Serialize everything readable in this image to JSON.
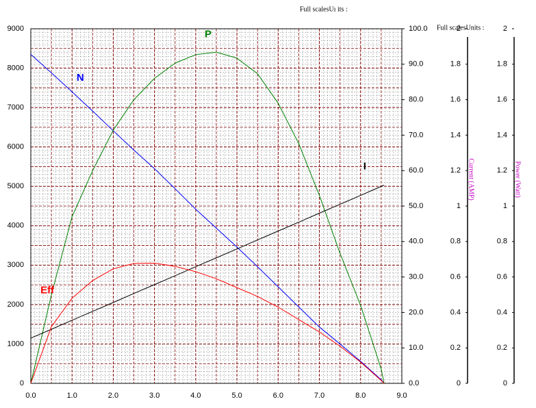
{
  "chart_data": {
    "type": "line",
    "header": "Full scalesUı its :",
    "header2": "Full scalesUnits :",
    "y3_label": "Current (AMP)",
    "y4_label": "Power (Watt)",
    "x": [
      0,
      0.5,
      1,
      1.5,
      2,
      2.5,
      3,
      3.5,
      4,
      4.5,
      5,
      5.5,
      6,
      6.5,
      7,
      7.5,
      8,
      8.5,
      8.57
    ],
    "xlim": [
      0,
      9
    ],
    "xticks": [
      {
        "value": 0,
        "label": "0.0"
      },
      {
        "value": 1,
        "label": "1.0"
      },
      {
        "value": 2,
        "label": "2.0"
      },
      {
        "value": 3,
        "label": "3.0"
      },
      {
        "value": 4,
        "label": "4.0"
      },
      {
        "value": 5,
        "label": "5.0"
      },
      {
        "value": 6,
        "label": "6.0"
      },
      {
        "value": 7,
        "label": "7.0"
      },
      {
        "value": 8,
        "label": "8.0"
      },
      {
        "value": 9,
        "label": "9.0"
      }
    ],
    "ylim": [
      0,
      9000
    ],
    "yticks": [
      0,
      1000,
      2000,
      3000,
      4000,
      5000,
      6000,
      7000,
      8000,
      9000
    ],
    "y2lim": [
      0,
      100
    ],
    "y2ticks": [
      {
        "value": 0,
        "label": "0.0"
      },
      {
        "value": 10,
        "label": "10.0"
      },
      {
        "value": 20,
        "label": "20.0"
      },
      {
        "value": 30,
        "label": "30.0"
      },
      {
        "value": 40,
        "label": "40.0"
      },
      {
        "value": 50,
        "label": "50.0"
      },
      {
        "value": 60,
        "label": "60.0"
      },
      {
        "value": 70,
        "label": "70.0"
      },
      {
        "value": 80,
        "label": "80.0"
      },
      {
        "value": 90,
        "label": "90.0"
      },
      {
        "value": 100,
        "label": "100.0"
      }
    ],
    "y3lim": [
      0,
      2
    ],
    "y3ticks": [
      0,
      0.2,
      0.4,
      0.6,
      0.8,
      1,
      1.2,
      1.4,
      1.6,
      1.8,
      2
    ],
    "y4lim": [
      0,
      2
    ],
    "y4ticks": [
      0,
      0.2,
      0.4,
      0.6,
      0.8,
      1,
      1.2,
      1.4,
      1.6,
      1.8,
      2
    ],
    "grid": true,
    "series": [
      {
        "name": "N",
        "color": "#0000ff",
        "axis": "y",
        "values": [
          8350,
          7880,
          7400,
          6910,
          6410,
          5920,
          5450,
          4940,
          4420,
          3940,
          3460,
          2960,
          2450,
          1940,
          1430,
          1000,
          560,
          90,
          0
        ]
      },
      {
        "name": "P",
        "color": "#008000",
        "axis": "y2",
        "values": [
          0,
          25,
          47,
          60,
          71.4,
          80,
          86,
          90.3,
          92.7,
          93.4,
          91.7,
          87.3,
          79,
          67.6,
          53,
          36.7,
          22,
          4,
          0
        ]
      },
      {
        "name": "I",
        "color": "#000000",
        "axis": "y3",
        "values": [
          0.255,
          0.305,
          0.356,
          0.406,
          0.456,
          0.507,
          0.557,
          0.607,
          0.658,
          0.708,
          0.758,
          0.809,
          0.859,
          0.909,
          0.96,
          1.01,
          1.06,
          1.111,
          1.118
        ]
      },
      {
        "name": "Eff",
        "color": "#ff0000",
        "axis": "y2",
        "values": [
          0,
          16,
          24,
          29,
          32.3,
          33.8,
          33.9,
          33,
          31.5,
          29.5,
          27,
          24.5,
          21.5,
          18,
          14.5,
          10.5,
          6,
          0.8,
          0
        ]
      }
    ]
  }
}
